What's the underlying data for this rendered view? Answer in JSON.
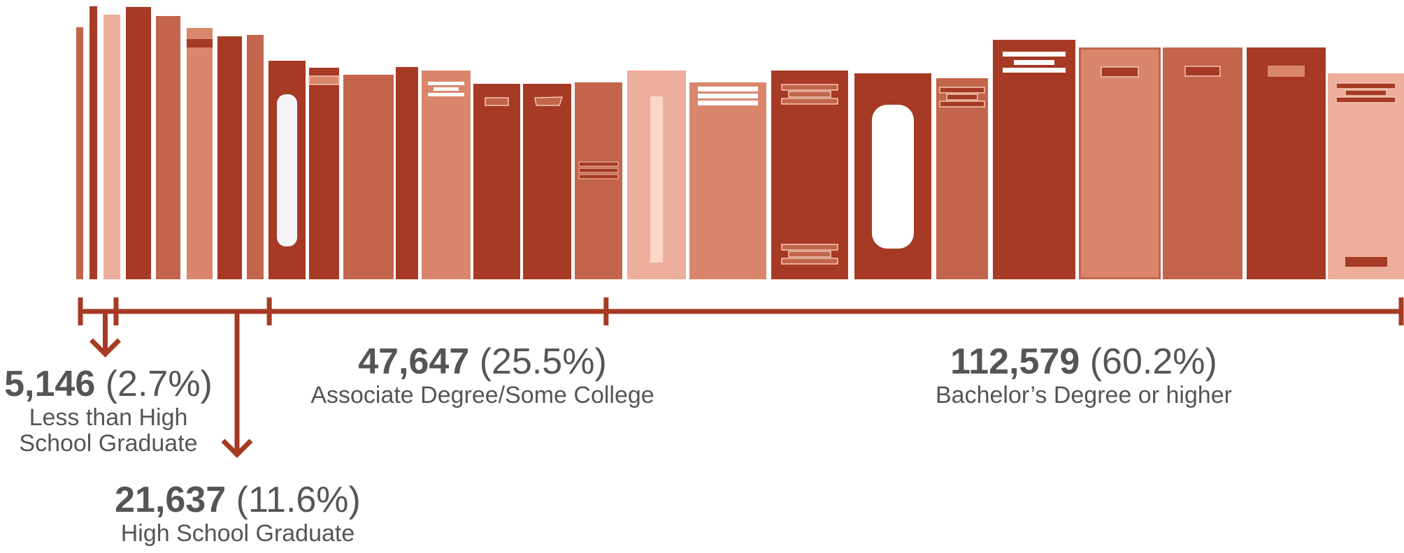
{
  "chart_data": {
    "type": "bar",
    "categories": [
      "Less than High School Graduate",
      "High School Graduate",
      "Associate Degree/Some College",
      "Bachelor’s Degree or higher"
    ],
    "values": [
      5146,
      21637,
      47647,
      112579
    ],
    "value_labels": [
      "5,146",
      "21,637",
      "47,647",
      "112,579"
    ],
    "percent_labels": [
      "(2.7%)",
      "(11.6%)",
      "(25.5%)",
      "(60.2%)"
    ],
    "percents": [
      2.7,
      11.6,
      25.5,
      60.2
    ],
    "category_lines": [
      [
        "Less than High",
        "School Graduate"
      ],
      [
        "High School Graduate"
      ],
      [
        "Associate Degree/Some College"
      ],
      [
        "Bachelor’s Degree or higher"
      ]
    ]
  },
  "colors": {
    "dark": "#a63a24",
    "mid": "#c2654a",
    "light": "#d9866c",
    "pale": "#edae9b",
    "label_text": "#555555"
  },
  "decoration": "row of book spines whose widths are proportional to each category's share"
}
